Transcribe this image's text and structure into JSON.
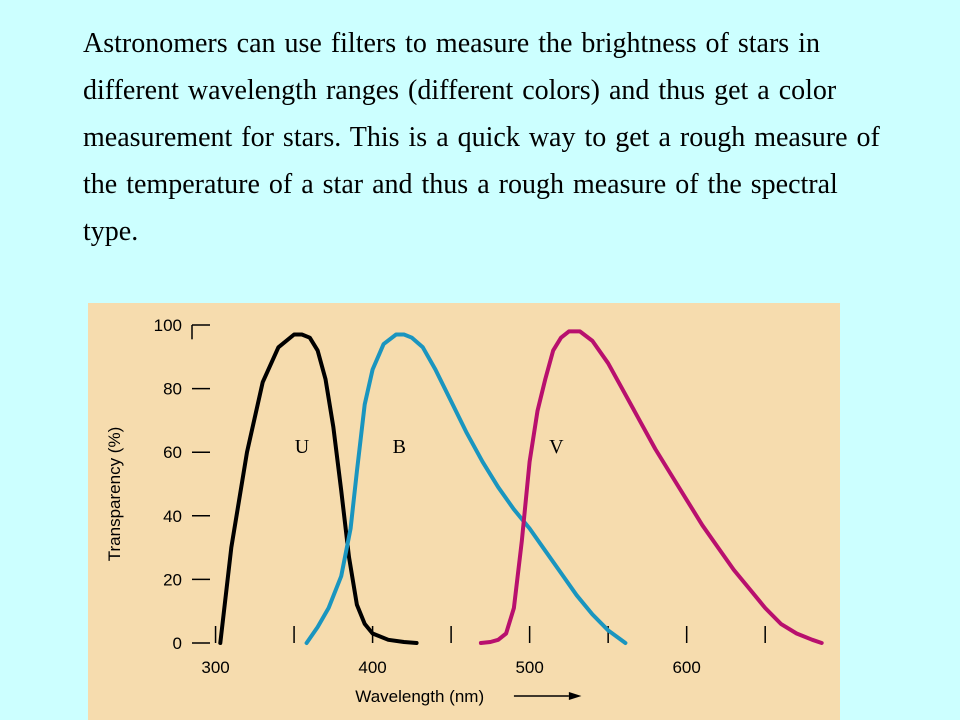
{
  "caption": "Astronomers can use filters to measure the brightness of stars in different wavelength ranges (different colors) and thus get a color measurement for stars.  This is a quick way to get a rough measure of the temperature of a star and thus a rough measure of the spectral type.",
  "colors": {
    "background": "#ccffff",
    "plot_background": "#f6dcae",
    "U": "#000000",
    "B": "#1a95bf",
    "V": "#b8106e"
  },
  "chart_data": {
    "type": "line",
    "xlabel": "Wavelength (nm)",
    "ylabel": "Transparency (%)",
    "xlim": [
      285,
      690
    ],
    "ylim": [
      0,
      100
    ],
    "xticks": [
      300,
      400,
      500,
      600
    ],
    "xtick_minor": [
      350,
      450,
      550,
      650
    ],
    "yticks": [
      0,
      20,
      40,
      60,
      80,
      100
    ],
    "grid": false,
    "series": [
      {
        "name": "U",
        "color": "#000000",
        "x": [
          303,
          310,
          320,
          330,
          340,
          350,
          355,
          360,
          365,
          370,
          375,
          380,
          385,
          390,
          395,
          400,
          410,
          420,
          428
        ],
        "y": [
          0,
          30,
          60,
          82,
          93,
          97,
          97,
          96,
          92,
          83,
          68,
          48,
          27,
          12,
          6,
          3,
          1,
          0.3,
          0
        ]
      },
      {
        "name": "B",
        "color": "#1a95bf",
        "x": [
          358,
          365,
          372,
          380,
          386,
          390,
          395,
          400,
          407,
          415,
          420,
          425,
          432,
          440,
          450,
          460,
          470,
          480,
          490,
          500,
          510,
          520,
          530,
          540,
          550,
          561
        ],
        "y": [
          0,
          5,
          11,
          21,
          36,
          54,
          75,
          86,
          94,
          97,
          97,
          96,
          93,
          86,
          76,
          66,
          57,
          49,
          42,
          36,
          29,
          22,
          15,
          9,
          4,
          0
        ]
      },
      {
        "name": "V",
        "color": "#b8106e",
        "x": [
          469,
          475,
          480,
          485,
          490,
          495,
          500,
          505,
          510,
          515,
          520,
          525,
          532,
          540,
          550,
          560,
          570,
          580,
          590,
          600,
          610,
          620,
          630,
          640,
          650,
          660,
          670,
          680,
          686
        ],
        "y": [
          0,
          0.3,
          1,
          3,
          11,
          32,
          57,
          73,
          83,
          92,
          96,
          98,
          98,
          95,
          88,
          79,
          70,
          61,
          53,
          45,
          37,
          30,
          23,
          17,
          11,
          6,
          3,
          1,
          0
        ]
      }
    ]
  }
}
